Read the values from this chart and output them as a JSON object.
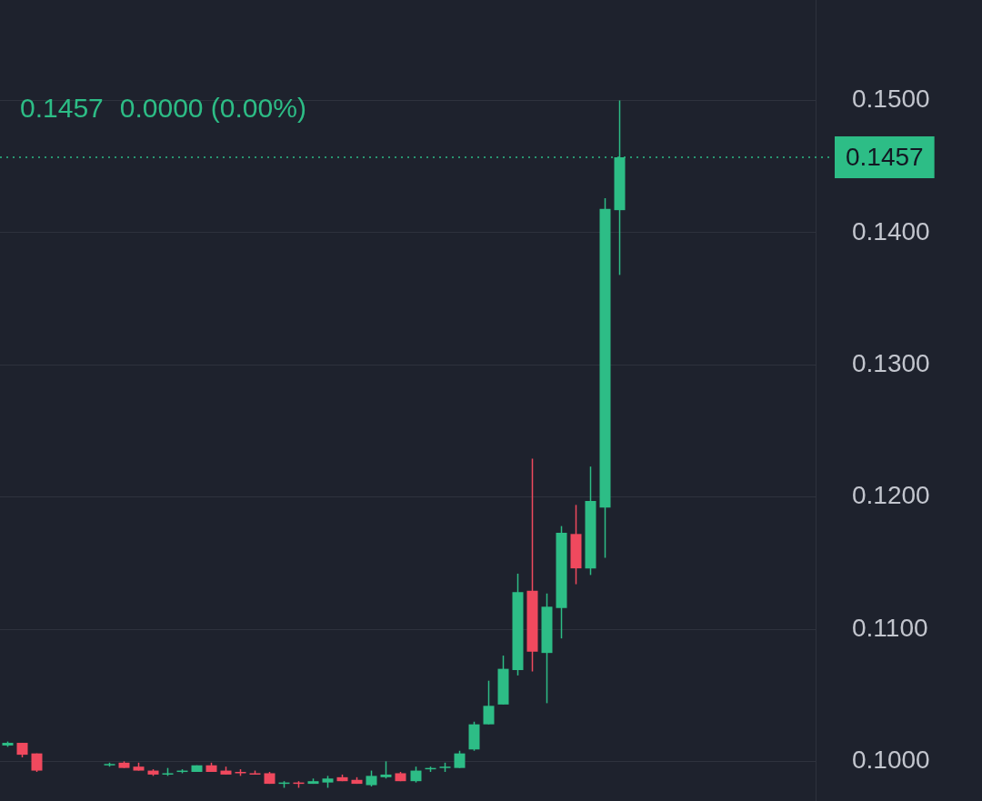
{
  "chart_data": {
    "type": "candlestick",
    "categories": [
      null,
      null,
      null,
      null,
      null,
      null,
      null,
      null,
      null,
      null,
      null,
      null,
      null,
      null,
      null,
      null,
      null,
      null,
      null,
      null,
      null,
      null,
      null,
      null,
      null,
      null,
      null,
      null,
      null,
      null,
      null,
      null,
      null,
      null,
      null,
      null,
      null,
      null,
      null,
      null,
      null,
      null,
      null,
      null,
      null,
      null,
      null,
      null,
      null,
      null,
      null,
      null,
      null,
      null,
      null,
      null
    ],
    "ohlc": [
      [
        0.1012,
        0.1015,
        0.1011,
        0.1014
      ],
      [
        0.1014,
        0.1014,
        0.1003,
        0.1005
      ],
      [
        0.1006,
        0.1006,
        0.0992,
        0.0993
      ],
      null,
      null,
      null,
      null,
      [
        0.0997,
        0.0999,
        0.0996,
        0.0998
      ],
      [
        0.0999,
        0.1,
        0.0995,
        0.0995
      ],
      [
        0.0996,
        0.0999,
        0.0993,
        0.0993
      ],
      [
        0.0993,
        0.0994,
        0.0989,
        0.099
      ],
      [
        0.099,
        0.0995,
        0.0989,
        0.0991
      ],
      [
        0.0992,
        0.0994,
        0.0991,
        0.0993
      ],
      [
        0.0992,
        0.0997,
        0.0992,
        0.0997
      ],
      [
        0.0997,
        0.0999,
        0.0992,
        0.0992
      ],
      [
        0.0993,
        0.0996,
        0.099,
        0.099
      ],
      [
        0.0992,
        0.0994,
        0.0989,
        0.0991
      ],
      [
        0.0991,
        0.0993,
        0.099,
        0.099
      ],
      [
        0.0991,
        0.0992,
        0.0983,
        0.0983
      ],
      [
        0.0983,
        0.0985,
        0.098,
        0.0984
      ],
      [
        0.0984,
        0.0985,
        0.098,
        0.0983
      ],
      [
        0.0983,
        0.0987,
        0.0983,
        0.0985
      ],
      [
        0.0984,
        0.0989,
        0.098,
        0.0987
      ],
      [
        0.0988,
        0.099,
        0.0985,
        0.0985
      ],
      [
        0.0986,
        0.0988,
        0.0983,
        0.0983
      ],
      [
        0.0982,
        0.0993,
        0.0981,
        0.0989
      ],
      [
        0.0988,
        0.1,
        0.0987,
        0.099
      ],
      [
        0.0991,
        0.0992,
        0.0985,
        0.0985
      ],
      [
        0.0985,
        0.0996,
        0.0984,
        0.0993
      ],
      [
        0.0994,
        0.0996,
        0.0992,
        0.0995
      ],
      [
        0.0995,
        0.0999,
        0.0992,
        0.0996
      ],
      [
        0.0995,
        0.1008,
        0.0995,
        0.1006
      ],
      [
        0.1009,
        0.103,
        0.1008,
        0.1028
      ],
      [
        0.1028,
        0.1061,
        0.1028,
        0.1042
      ],
      [
        0.1043,
        0.108,
        0.1043,
        0.107
      ],
      [
        0.1069,
        0.1142,
        0.1065,
        0.1128
      ],
      [
        0.1129,
        0.1229,
        0.1068,
        0.1083
      ],
      [
        0.1082,
        0.1127,
        0.1044,
        0.1117
      ],
      [
        0.1116,
        0.1178,
        0.1093,
        0.1173
      ],
      [
        0.1172,
        0.1194,
        0.1134,
        0.1146
      ],
      [
        0.1146,
        0.1223,
        0.1141,
        0.1197
      ],
      [
        0.1192,
        0.1426,
        0.1154,
        0.1418
      ],
      [
        0.1417,
        0.15,
        0.1368,
        0.1457
      ],
      null,
      null,
      null,
      null,
      null,
      null,
      null,
      null,
      null,
      null,
      null,
      null,
      null
    ],
    "colors": [
      "#2dbd86",
      "#f0495e",
      "#f0495e",
      null,
      null,
      null,
      null,
      "#2dbd86",
      "#f0495e",
      "#f0495e",
      "#f0495e",
      "#2dbd86",
      "#2dbd86",
      "#2dbd86",
      "#f0495e",
      "#f0495e",
      "#f0495e",
      "#f0495e",
      "#f0495e",
      "#2dbd86",
      "#f0495e",
      "#2dbd86",
      "#2dbd86",
      "#f0495e",
      "#f0495e",
      "#2dbd86",
      "#2dbd86",
      "#f0495e",
      "#2dbd86",
      "#2dbd86",
      "#2dbd86",
      "#2dbd86",
      "#2dbd86",
      "#2dbd86",
      "#2dbd86",
      "#2dbd86",
      "#f0495e",
      "#2dbd86",
      "#2dbd86",
      "#f0495e",
      "#2dbd86",
      "#2dbd86",
      "#2dbd86",
      null,
      null,
      null,
      null,
      null,
      null,
      null,
      null,
      null,
      null,
      null,
      null,
      null
    ],
    "ylim": [
      0.097,
      0.1576
    ],
    "yticks": [
      {
        "value": 0.1,
        "label": "0.1000"
      },
      {
        "value": 0.11,
        "label": "0.1100"
      },
      {
        "value": 0.12,
        "label": "0.1200"
      },
      {
        "value": 0.13,
        "label": "0.1300"
      },
      {
        "value": 0.14,
        "label": "0.1400"
      },
      {
        "value": 0.15,
        "label": "0.1500"
      }
    ],
    "ref_lines": [
      {
        "axis": "y",
        "value": 0.1457,
        "label": "0.1457",
        "color": "#2dbd86",
        "line_style": "dotted"
      }
    ],
    "annotations": [
      "0.1457",
      "0.0000 (0.00%)"
    ],
    "grid": "y",
    "legend": false,
    "tick_labels": "y"
  }
}
